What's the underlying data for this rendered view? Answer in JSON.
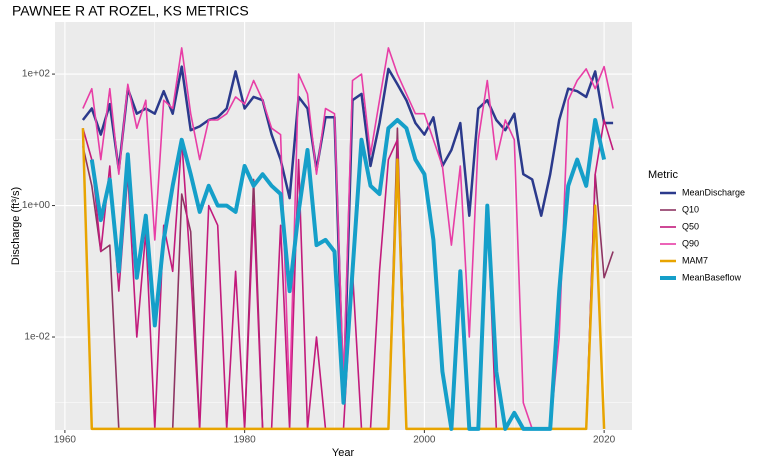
{
  "chart_data": {
    "type": "line",
    "title": "PAWNEE R AT ROZEL, KS  METRICS",
    "x_label": "Year",
    "y_label": "Discharge (ft³/s)",
    "legend_title": "Metric",
    "log_y": true,
    "grid": true,
    "legend": "right",
    "xlim": [
      1958.9,
      2023.1
    ],
    "xticks": [
      1960,
      1980,
      2000,
      2020
    ],
    "ylim": [
      0.000385,
      620
    ],
    "yticks": [
      {
        "value": 0.01,
        "label": "1e-02"
      },
      {
        "value": 1,
        "label": "1e+00"
      },
      {
        "value": 100,
        "label": "1e+02"
      }
    ],
    "x": [
      1962,
      1963,
      1964,
      1965,
      1966,
      1967,
      1968,
      1969,
      1970,
      1971,
      1972,
      1973,
      1974,
      1975,
      1976,
      1977,
      1978,
      1979,
      1980,
      1981,
      1982,
      1983,
      1984,
      1985,
      1986,
      1987,
      1988,
      1989,
      1990,
      1991,
      1992,
      1993,
      1994,
      1995,
      1996,
      1997,
      1998,
      1999,
      2000,
      2001,
      2002,
      2003,
      2004,
      2005,
      2006,
      2007,
      2008,
      2009,
      2010,
      2011,
      2012,
      2013,
      2014,
      2015,
      2016,
      2017,
      2018,
      2019,
      2020,
      2021
    ],
    "series": [
      {
        "name": "MeanDischarge",
        "color": "#2b3a8c",
        "linewidth": 2.5,
        "values": [
          20,
          30,
          12,
          35,
          3.5,
          60,
          25,
          30,
          25,
          55,
          25,
          130,
          14,
          16,
          20,
          22,
          30,
          110,
          30,
          45,
          40,
          12,
          5,
          1.3,
          45,
          30,
          3.5,
          22,
          22,
          0.001,
          40,
          50,
          4,
          18,
          120,
          70,
          40,
          18,
          12,
          22,
          4,
          7,
          18,
          0.7,
          30,
          40,
          20,
          14,
          25,
          3,
          2.5,
          0.7,
          3,
          20,
          60,
          55,
          45,
          110,
          18,
          18
        ]
      },
      {
        "name": "Q10",
        "color": "#8e3563",
        "linewidth": 1.6,
        "values": [
          8,
          2,
          0.2,
          0.25,
          0.0004,
          0.0004,
          0.0004,
          0.0004,
          0.0004,
          0.0004,
          0.0004,
          1.5,
          0.4,
          0.0004,
          0.0004,
          0.0004,
          0.0004,
          0.0004,
          0.0004,
          2.5,
          0.0004,
          0.0004,
          0.0004,
          0.0004,
          0.0004,
          0.0004,
          0.0004,
          0.0004,
          0.0004,
          0.0004,
          0.0004,
          0.0004,
          0.0004,
          0.0004,
          0.0004,
          15,
          0.0004,
          0.0004,
          0.0004,
          0.0004,
          0.0004,
          0.0004,
          0.0004,
          0.0004,
          0.0004,
          0.0004,
          0.0004,
          0.0004,
          0.0004,
          0.0004,
          0.0004,
          0.0004,
          0.0004,
          0.0004,
          0.0004,
          0.0004,
          0.0004,
          3,
          0.08,
          0.2
        ]
      },
      {
        "name": "Q50",
        "color": "#c21b7c",
        "linewidth": 1.6,
        "values": [
          15,
          5,
          0.2,
          4,
          0.05,
          3,
          0.01,
          0.4,
          0.0004,
          0.5,
          0.1,
          10,
          0.1,
          0.0004,
          1,
          0.5,
          0.0004,
          0.1,
          0.0004,
          1,
          0.0004,
          0.0004,
          0.5,
          0.0004,
          5,
          0.0004,
          0.01,
          0.0004,
          0.0004,
          0.0004,
          0.1,
          0.0004,
          0.0004,
          0.1,
          5,
          10,
          0.0004,
          0.0004,
          0.0004,
          0.0004,
          0.0004,
          0.0004,
          0.0004,
          0.0004,
          0.0004,
          1,
          0.0004,
          0.0004,
          0.0004,
          0.0004,
          0.0004,
          0.0004,
          0.0004,
          0.0004,
          0.0004,
          0.0004,
          0.0004,
          3,
          20,
          7
        ]
      },
      {
        "name": "Q90",
        "color": "#e83ea6",
        "linewidth": 1.6,
        "values": [
          30,
          60,
          5,
          60,
          3,
          70,
          15,
          40,
          0.3,
          40,
          30,
          250,
          25,
          5,
          20,
          20,
          25,
          45,
          35,
          80,
          40,
          15,
          12,
          0.001,
          100,
          50,
          3,
          30,
          25,
          0.002,
          80,
          100,
          6,
          40,
          250,
          100,
          50,
          25,
          25,
          10,
          4,
          0.25,
          4,
          0.01,
          10,
          80,
          5,
          20,
          10,
          0.001,
          0.0004,
          0.0004,
          0.0004,
          0.01,
          40,
          80,
          120,
          60,
          130,
          30
        ]
      },
      {
        "name": "MAM7",
        "color": "#e8a400",
        "linewidth": 2.5,
        "values": [
          15,
          0.0004,
          0.0004,
          0.0004,
          0.0004,
          0.0004,
          0.0004,
          0.0004,
          0.0004,
          0.0004,
          0.0004,
          0.0004,
          0.0004,
          0.0004,
          0.0004,
          0.0004,
          0.0004,
          0.0004,
          0.0004,
          0.0004,
          0.0004,
          0.0004,
          0.0004,
          0.0004,
          0.0004,
          0.0004,
          0.0004,
          0.0004,
          0.0004,
          0.0004,
          0.0004,
          0.0004,
          0.0004,
          0.0004,
          0.0004,
          5,
          0.0004,
          0.0004,
          0.0004,
          0.0004,
          0.0004,
          0.0004,
          0.0004,
          0.0004,
          0.0004,
          0.0004,
          0.0004,
          0.0004,
          0.0004,
          0.0004,
          0.0004,
          0.0004,
          0.0004,
          0.0004,
          0.0004,
          0.0004,
          0.0004,
          1,
          0.0004,
          null
        ]
      },
      {
        "name": "MeanBaseflow",
        "color": "#159fc9",
        "linewidth": 4,
        "values": [
          null,
          5,
          0.6,
          2.5,
          0.1,
          6,
          0.08,
          0.7,
          0.015,
          0.3,
          2,
          10,
          3,
          0.8,
          2,
          1,
          1,
          0.8,
          4,
          2,
          3,
          2,
          1.5,
          0.05,
          0.8,
          7,
          0.25,
          0.3,
          0.2,
          0.001,
          0.1,
          10,
          2,
          1.5,
          15,
          20,
          15,
          5,
          3,
          0.3,
          0.003,
          0.0004,
          0.1,
          0.0004,
          0.0004,
          1,
          0.003,
          0.0004,
          0.0007,
          0.0004,
          0.0004,
          0.0004,
          0.0004,
          0.05,
          2,
          5,
          2,
          20,
          5,
          null
        ]
      }
    ]
  }
}
